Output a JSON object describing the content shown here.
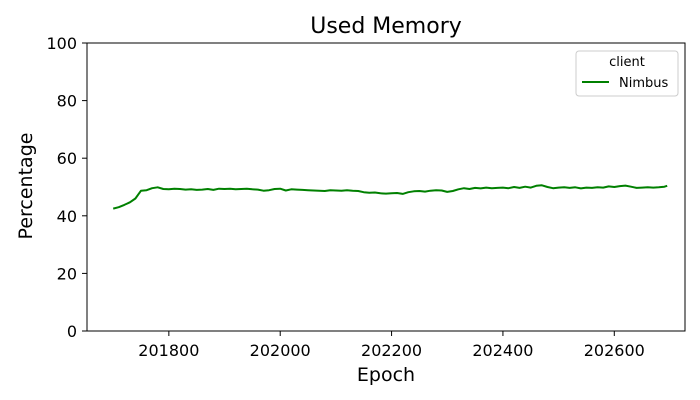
{
  "chart_data": {
    "type": "line",
    "title": "Used Memory",
    "xlabel": "Epoch",
    "ylabel": "Percentage",
    "xlim": [
      201653,
      202727
    ],
    "ylim": [
      0,
      100
    ],
    "xticks": [
      201800,
      202000,
      202200,
      202400,
      202600
    ],
    "yticks": [
      0,
      20,
      40,
      60,
      80,
      100
    ],
    "grid": false,
    "legend": {
      "title": "client",
      "placement": "top-right"
    },
    "series": [
      {
        "name": "Nimbus",
        "color": "#008000",
        "x": [
          201700,
          201710,
          201720,
          201730,
          201740,
          201750,
          201760,
          201770,
          201780,
          201790,
          201800,
          201810,
          201820,
          201830,
          201840,
          201850,
          201860,
          201870,
          201880,
          201890,
          201900,
          201910,
          201920,
          201930,
          201940,
          201950,
          201960,
          201970,
          201980,
          201990,
          202000,
          202010,
          202020,
          202030,
          202040,
          202050,
          202060,
          202070,
          202080,
          202090,
          202100,
          202110,
          202120,
          202130,
          202140,
          202150,
          202160,
          202170,
          202180,
          202190,
          202200,
          202210,
          202220,
          202230,
          202240,
          202250,
          202260,
          202270,
          202280,
          202290,
          202300,
          202310,
          202320,
          202330,
          202340,
          202350,
          202360,
          202370,
          202380,
          202390,
          202400,
          202410,
          202420,
          202430,
          202440,
          202450,
          202460,
          202470,
          202480,
          202490,
          202500,
          202510,
          202520,
          202530,
          202540,
          202550,
          202560,
          202570,
          202580,
          202590,
          202600,
          202610,
          202620,
          202630,
          202640,
          202650,
          202660,
          202670,
          202680,
          202690,
          202695
        ],
        "values": [
          42.5,
          43.0,
          43.8,
          44.7,
          46.0,
          48.7,
          48.9,
          49.6,
          49.9,
          49.3,
          49.2,
          49.4,
          49.3,
          49.1,
          49.2,
          49.0,
          49.1,
          49.3,
          49.0,
          49.4,
          49.3,
          49.4,
          49.2,
          49.3,
          49.4,
          49.2,
          49.1,
          48.7,
          48.9,
          49.3,
          49.4,
          48.8,
          49.2,
          49.1,
          49.0,
          48.9,
          48.8,
          48.7,
          48.6,
          48.9,
          48.8,
          48.7,
          48.9,
          48.7,
          48.6,
          48.2,
          48.0,
          48.1,
          47.8,
          47.7,
          47.8,
          47.9,
          47.6,
          48.2,
          48.5,
          48.6,
          48.4,
          48.7,
          48.9,
          48.8,
          48.3,
          48.6,
          49.2,
          49.6,
          49.3,
          49.7,
          49.5,
          49.8,
          49.6,
          49.7,
          49.8,
          49.6,
          50.0,
          49.7,
          50.1,
          49.8,
          50.4,
          50.6,
          50.0,
          49.6,
          49.8,
          49.9,
          49.7,
          49.9,
          49.5,
          49.8,
          49.7,
          49.9,
          49.8,
          50.2,
          50.0,
          50.3,
          50.5,
          50.1,
          49.7,
          49.8,
          49.9,
          49.8,
          49.9,
          50.1,
          50.4
        ]
      }
    ]
  }
}
